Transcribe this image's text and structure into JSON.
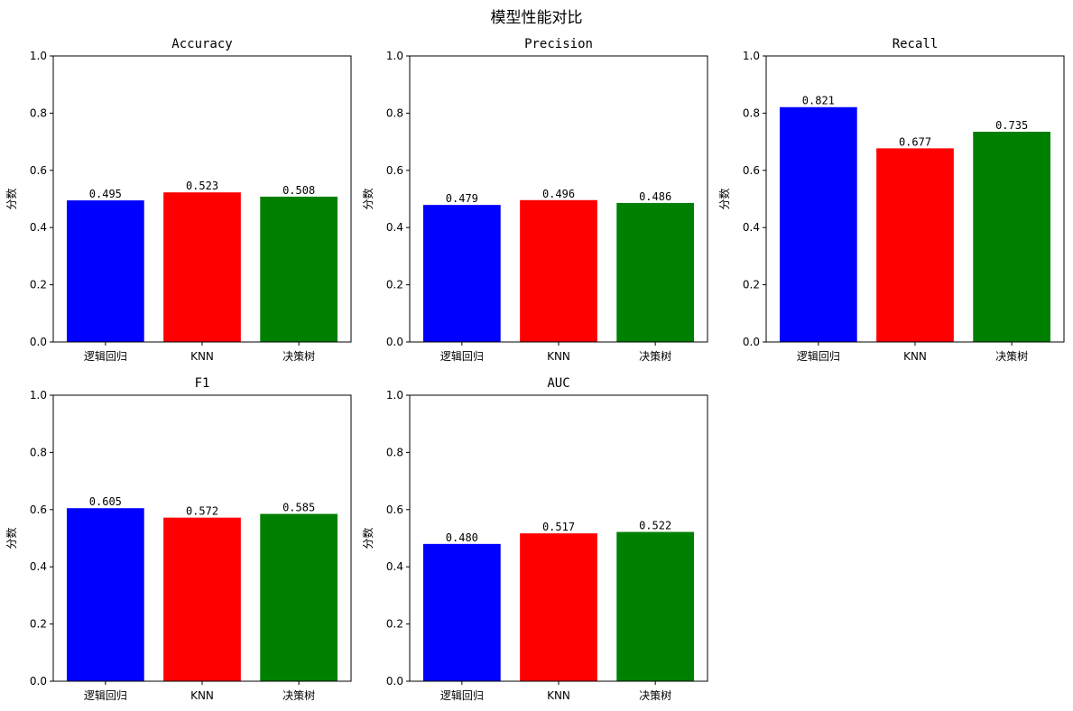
{
  "figure_title": "模型性能对比",
  "chart_data": [
    {
      "type": "bar",
      "title": "Accuracy",
      "categories": [
        "逻辑回归",
        "KNN",
        "决策树"
      ],
      "values": [
        0.495,
        0.523,
        0.508
      ],
      "value_labels": [
        "0.495",
        "0.523",
        "0.508"
      ],
      "colors": [
        "#0000ff",
        "#ff0000",
        "#008000"
      ],
      "xlabel": "",
      "ylabel": "分数",
      "ylim": [
        0,
        1.0
      ],
      "yticks": [
        "0.0",
        "0.2",
        "0.4",
        "0.6",
        "0.8",
        "1.0"
      ],
      "grid": false
    },
    {
      "type": "bar",
      "title": "Precision",
      "categories": [
        "逻辑回归",
        "KNN",
        "决策树"
      ],
      "values": [
        0.479,
        0.496,
        0.486
      ],
      "value_labels": [
        "0.479",
        "0.496",
        "0.486"
      ],
      "colors": [
        "#0000ff",
        "#ff0000",
        "#008000"
      ],
      "xlabel": "",
      "ylabel": "分数",
      "ylim": [
        0,
        1.0
      ],
      "yticks": [
        "0.0",
        "0.2",
        "0.4",
        "0.6",
        "0.8",
        "1.0"
      ],
      "grid": false
    },
    {
      "type": "bar",
      "title": "Recall",
      "categories": [
        "逻辑回归",
        "KNN",
        "决策树"
      ],
      "values": [
        0.821,
        0.677,
        0.735
      ],
      "value_labels": [
        "0.821",
        "0.677",
        "0.735"
      ],
      "colors": [
        "#0000ff",
        "#ff0000",
        "#008000"
      ],
      "xlabel": "",
      "ylabel": "分数",
      "ylim": [
        0,
        1.0
      ],
      "yticks": [
        "0.0",
        "0.2",
        "0.4",
        "0.6",
        "0.8",
        "1.0"
      ],
      "grid": false
    },
    {
      "type": "bar",
      "title": "F1",
      "categories": [
        "逻辑回归",
        "KNN",
        "决策树"
      ],
      "values": [
        0.605,
        0.572,
        0.585
      ],
      "value_labels": [
        "0.605",
        "0.572",
        "0.585"
      ],
      "colors": [
        "#0000ff",
        "#ff0000",
        "#008000"
      ],
      "xlabel": "",
      "ylabel": "分数",
      "ylim": [
        0,
        1.0
      ],
      "yticks": [
        "0.0",
        "0.2",
        "0.4",
        "0.6",
        "0.8",
        "1.0"
      ],
      "grid": false
    },
    {
      "type": "bar",
      "title": "AUC",
      "categories": [
        "逻辑回归",
        "KNN",
        "决策树"
      ],
      "values": [
        0.48,
        0.517,
        0.522
      ],
      "value_labels": [
        "0.480",
        "0.517",
        "0.522"
      ],
      "colors": [
        "#0000ff",
        "#ff0000",
        "#008000"
      ],
      "xlabel": "",
      "ylabel": "分数",
      "ylim": [
        0,
        1.0
      ],
      "yticks": [
        "0.0",
        "0.2",
        "0.4",
        "0.6",
        "0.8",
        "1.0"
      ],
      "grid": false
    }
  ]
}
